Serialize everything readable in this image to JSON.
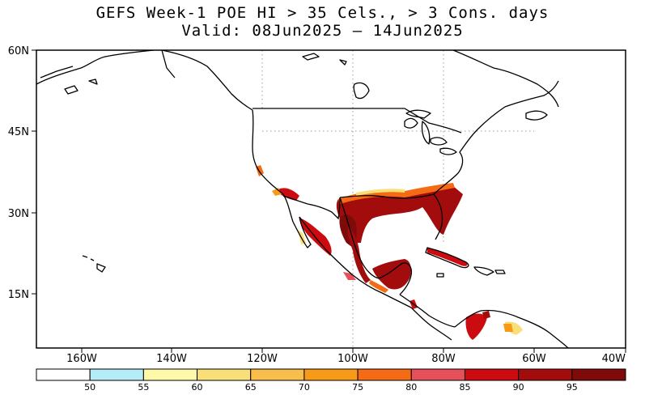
{
  "title": {
    "line1": "GEFS Week-1 POE HI > 35 Cels., > 3 Cons. days",
    "line2": "Valid: 08Jun2025 — 14Jun2025"
  },
  "map": {
    "lon_range": [
      -170,
      -40
    ],
    "lat_range": [
      5,
      60
    ],
    "lat_labels": [
      "60N",
      "45N",
      "30N",
      "15N"
    ],
    "lon_labels": [
      "160W",
      "140W",
      "120W",
      "100W",
      "80W",
      "60W",
      "40W"
    ],
    "land_color": "#ffffff",
    "coast_color": "#000000",
    "grid_style": "dotted"
  },
  "colorbar": {
    "labels": [
      "50",
      "55",
      "60",
      "65",
      "70",
      "75",
      "80",
      "85",
      "90",
      "95"
    ],
    "colors": [
      "#ffffff",
      "#b4ecf8",
      "#fdf9a8",
      "#f9df78",
      "#f8bd4a",
      "#f79a17",
      "#f56a14",
      "#e6505a",
      "#cc0b10",
      "#a30c0c",
      "#7e0a0a"
    ]
  }
}
